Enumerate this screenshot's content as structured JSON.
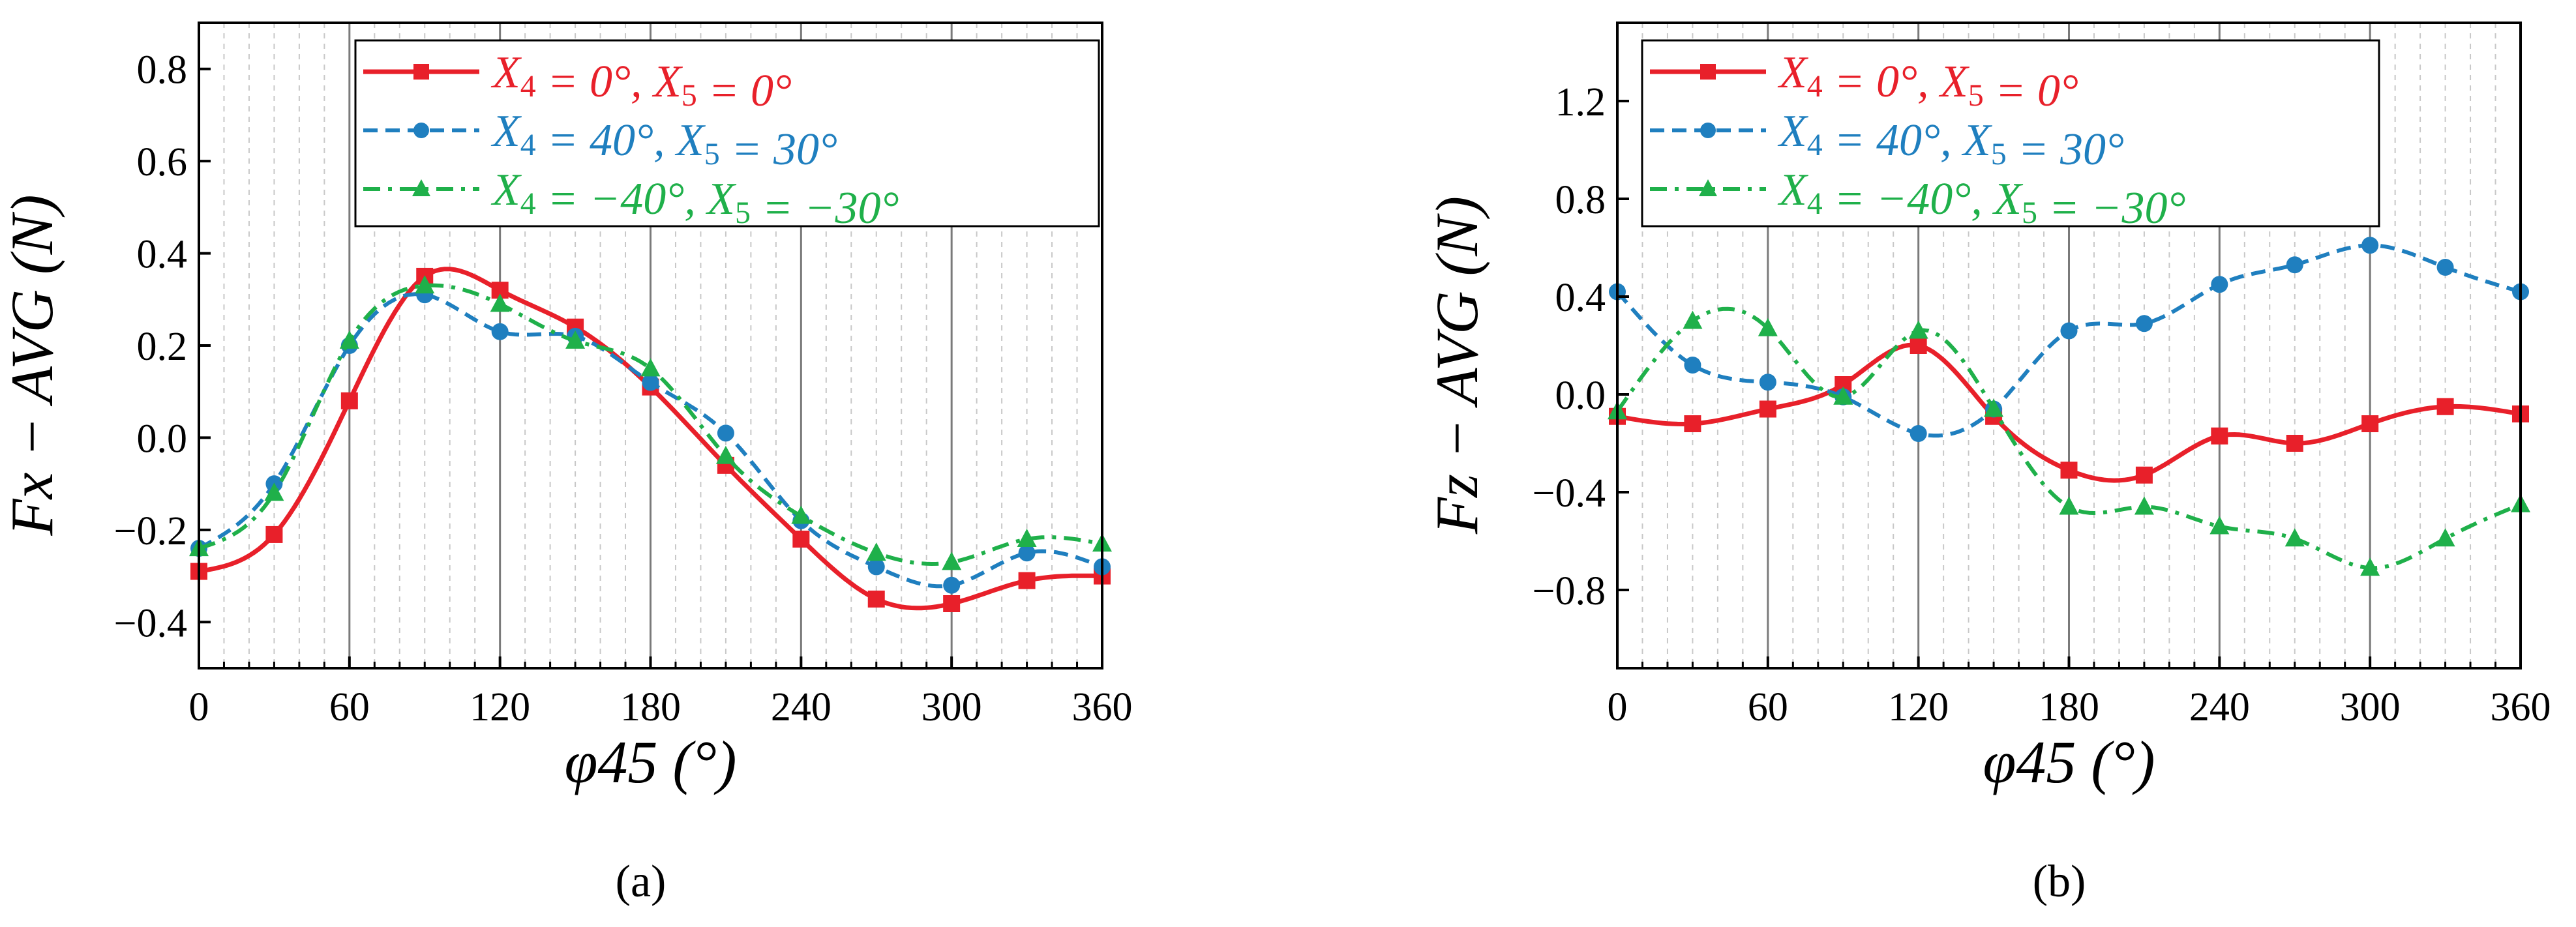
{
  "chart_data": [
    {
      "type": "line",
      "panel_label": "(a)",
      "xlabel": "φ45 (°)",
      "ylabel": "Fx − AVG (N)",
      "xlim": [
        0,
        360
      ],
      "ylim": [
        -0.5,
        0.9
      ],
      "xticks": [
        0,
        60,
        120,
        180,
        240,
        300,
        360
      ],
      "yticks": [
        -0.4,
        -0.2,
        0.0,
        0.2,
        0.4,
        0.6,
        0.8
      ],
      "ytick_labels": [
        "−0.4",
        "−0.2",
        "0.0",
        "0.2",
        "0.4",
        "0.6",
        "0.8"
      ],
      "grid": "vertical",
      "legend_position": "top-right",
      "x": [
        0,
        30,
        60,
        90,
        120,
        150,
        180,
        210,
        240,
        270,
        300,
        330,
        360
      ],
      "series": [
        {
          "name": "X4 = 0°, X5 = 0°",
          "color": "#e8202a",
          "dash": "solid",
          "marker": "square",
          "values": [
            -0.29,
            -0.21,
            0.08,
            0.35,
            0.32,
            0.24,
            0.11,
            -0.06,
            -0.22,
            -0.35,
            -0.36,
            -0.31,
            -0.3
          ]
        },
        {
          "name": "X4 = 40°, X5 = 30°",
          "color": "#1f7fbf",
          "dash": "dashed",
          "marker": "circle",
          "values": [
            -0.24,
            -0.1,
            0.2,
            0.31,
            0.23,
            0.22,
            0.12,
            0.01,
            -0.18,
            -0.28,
            -0.32,
            -0.25,
            -0.28
          ]
        },
        {
          "name": "X4 = −40°, X5 = −30°",
          "color": "#1fb04a",
          "dash": "dashdot",
          "marker": "triangle",
          "values": [
            -0.24,
            -0.12,
            0.21,
            0.33,
            0.29,
            0.21,
            0.15,
            -0.04,
            -0.17,
            -0.25,
            -0.27,
            -0.22,
            -0.23
          ]
        }
      ]
    },
    {
      "type": "line",
      "panel_label": "(b)",
      "xlabel": "φ45 (°)",
      "ylabel": "Fz − AVG (N)",
      "xlim": [
        0,
        360
      ],
      "ylim": [
        -1.12,
        1.52
      ],
      "xticks": [
        0,
        60,
        120,
        180,
        240,
        300,
        360
      ],
      "yticks": [
        -0.8,
        -0.4,
        0.0,
        0.4,
        0.8,
        1.2
      ],
      "ytick_labels": [
        "−0.8",
        "−0.4",
        "0.0",
        "0.4",
        "0.8",
        "1.2"
      ],
      "grid": "vertical",
      "legend_position": "top-right",
      "x": [
        0,
        30,
        60,
        90,
        120,
        150,
        180,
        210,
        240,
        270,
        300,
        330,
        360
      ],
      "series": [
        {
          "name": "X4 = 0°, X5 = 0°",
          "color": "#e8202a",
          "dash": "solid",
          "marker": "square",
          "values": [
            -0.09,
            -0.12,
            -0.06,
            0.04,
            0.2,
            -0.09,
            -0.31,
            -0.33,
            -0.17,
            -0.2,
            -0.12,
            -0.05,
            -0.08
          ]
        },
        {
          "name": "X4 = 40°, X5 = 30°",
          "color": "#1f7fbf",
          "dash": "dashed",
          "marker": "circle",
          "values": [
            0.42,
            0.12,
            0.05,
            -0.01,
            -0.16,
            -0.06,
            0.26,
            0.29,
            0.45,
            0.53,
            0.61,
            0.52,
            0.42
          ]
        },
        {
          "name": "X4 = −40°, X5 = −30°",
          "color": "#1fb04a",
          "dash": "dashdot",
          "marker": "triangle",
          "values": [
            -0.07,
            0.3,
            0.27,
            -0.01,
            0.26,
            -0.06,
            -0.46,
            -0.46,
            -0.54,
            -0.59,
            -0.71,
            -0.59,
            -0.45
          ]
        }
      ]
    }
  ],
  "legend_labels": {
    "s0": {
      "v": "X",
      "sub1": "4",
      "mid": " = 0°, ",
      "v2": "X",
      "sub2": "5",
      "end": " = 0°"
    },
    "s1": {
      "v": "X",
      "sub1": "4",
      "mid": " = 40°, ",
      "v2": "X",
      "sub2": "5",
      "end": " = 30°"
    },
    "s2": {
      "v": "X",
      "sub1": "4",
      "mid": " = −40°, ",
      "v2": "X",
      "sub2": "5",
      "end": " = −30°"
    }
  }
}
